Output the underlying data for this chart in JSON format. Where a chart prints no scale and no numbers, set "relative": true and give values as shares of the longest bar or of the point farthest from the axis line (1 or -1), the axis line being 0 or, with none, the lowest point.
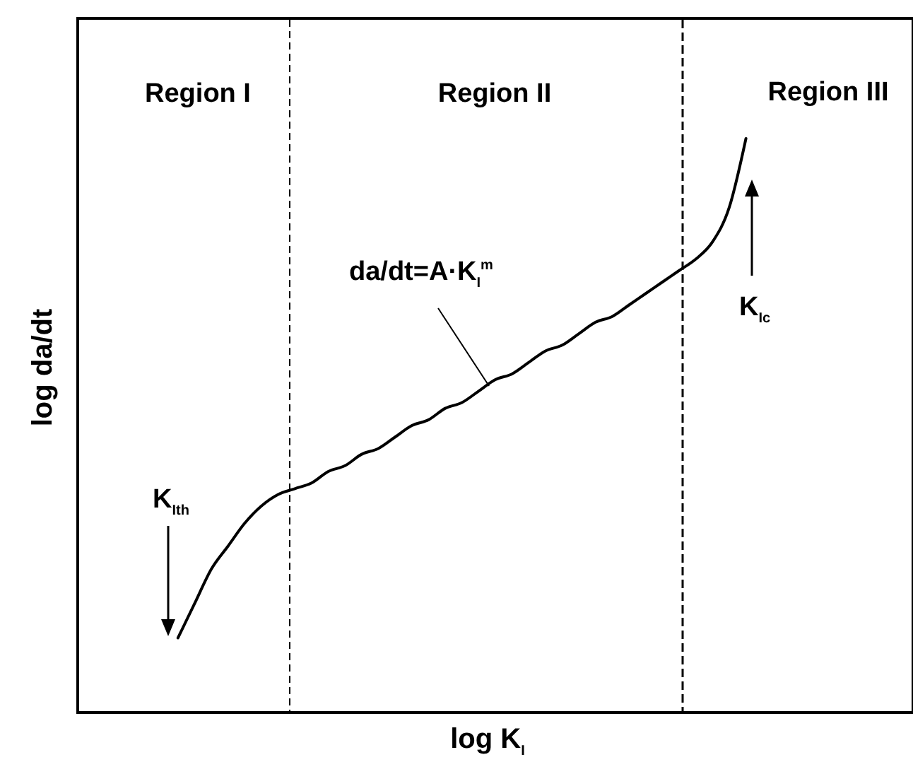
{
  "chart_data": {
    "type": "line",
    "relative": true,
    "xlabel": "log K$_{I}$",
    "ylabel": "log da/dt",
    "categories": [
      null,
      null,
      null,
      null,
      null,
      null,
      null,
      null,
      null,
      null,
      null,
      null,
      null,
      null,
      null,
      null,
      null,
      null,
      null,
      null,
      null,
      null,
      null,
      null,
      null,
      null,
      null,
      null,
      null,
      null,
      null,
      null,
      null,
      null,
      null,
      null,
      null,
      null,
      null,
      null,
      null,
      null,
      null,
      null,
      null,
      null,
      null,
      null,
      null,
      null,
      null
    ],
    "series": [
      {
        "color": "#000000",
        "values": [
          null,
          null,
          null,
          null,
          null,
          null,
          0.13,
          0.19,
          0.25,
          0.29,
          0.33,
          0.36,
          0.38,
          0.39,
          0.4,
          0.42,
          0.43,
          0.45,
          0.46,
          0.48,
          0.5,
          0.51,
          0.53,
          0.54,
          0.56,
          0.58,
          0.59,
          0.61,
          0.63,
          0.64,
          0.66,
          0.68,
          0.69,
          0.71,
          0.73,
          0.75,
          0.77,
          0.79,
          0.82,
          0.88,
          1,
          null,
          null,
          null,
          null,
          null,
          null,
          null,
          null,
          null,
          null
        ]
      }
    ],
    "annotations": [
      "Region I",
      "Region II",
      "Region III",
      "da/dt=A·K$_{I}$$^{m}$",
      "K$_{Ith}$",
      "K$_{Ic}$"
    ]
  }
}
